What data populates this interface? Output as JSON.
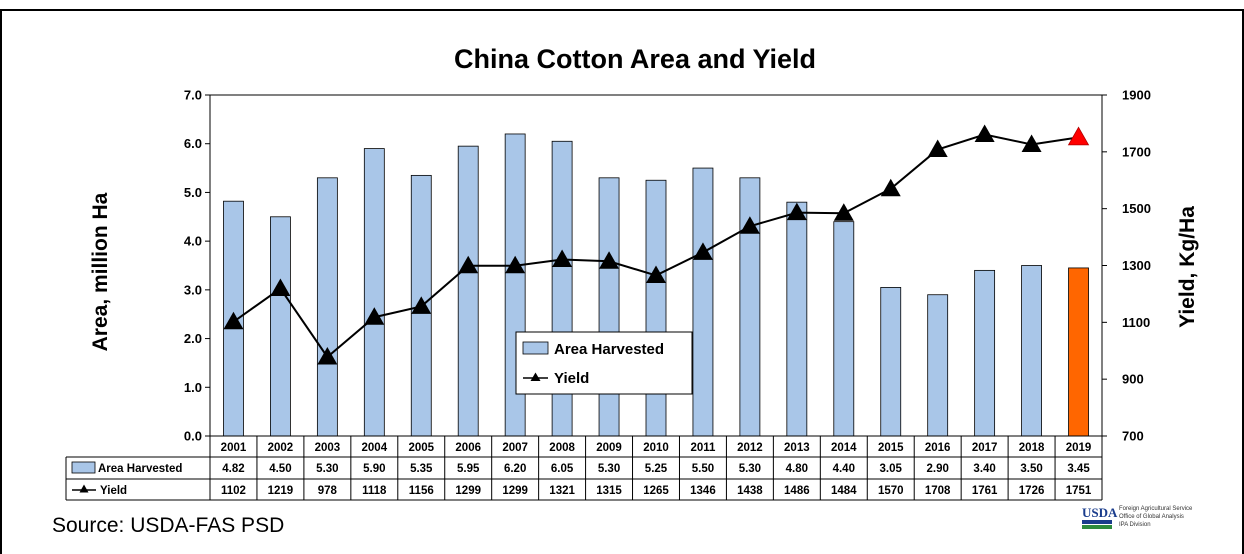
{
  "chart_data": {
    "type": "bar",
    "title": "China Cotton Area and Yield",
    "categories": [
      "2001",
      "2002",
      "2003",
      "2004",
      "2005",
      "2006",
      "2007",
      "2008",
      "2009",
      "2010",
      "2011",
      "2012",
      "2013",
      "2014",
      "2015",
      "2016",
      "2017",
      "2018",
      "2019"
    ],
    "series": [
      {
        "name": "Area Harvested",
        "type": "bar",
        "axis": "left",
        "values": [
          4.82,
          4.5,
          5.3,
          5.9,
          5.35,
          5.95,
          6.2,
          6.05,
          5.3,
          5.25,
          5.5,
          5.3,
          4.8,
          4.4,
          3.05,
          2.9,
          3.4,
          3.5,
          3.45
        ],
        "labels": [
          "4.82",
          "4.50",
          "5.30",
          "5.90",
          "5.35",
          "5.95",
          "6.20",
          "6.05",
          "5.30",
          "5.25",
          "5.50",
          "5.30",
          "4.80",
          "4.40",
          "3.05",
          "2.90",
          "3.40",
          "3.50",
          "3.45"
        ],
        "color": "#a9c6e8",
        "highlight_color": "#ff6600",
        "highlight_category": "2019"
      },
      {
        "name": "Yield",
        "type": "line",
        "axis": "right",
        "values": [
          1102,
          1219,
          978,
          1118,
          1156,
          1299,
          1299,
          1321,
          1315,
          1265,
          1346,
          1438,
          1486,
          1484,
          1570,
          1708,
          1761,
          1726,
          1751
        ],
        "color": "#000000",
        "marker": "triangle",
        "highlight_marker_color": "#ff0000",
        "highlight_category": "2019"
      }
    ],
    "y_left": {
      "label": "Area, million Ha",
      "range": [
        0,
        7
      ],
      "ticks": [
        "0.0",
        "1.0",
        "2.0",
        "3.0",
        "4.0",
        "5.0",
        "6.0",
        "7.0"
      ]
    },
    "y_right": {
      "label": "Yield, Kg/Ha",
      "range": [
        700,
        1900
      ],
      "ticks": [
        "700",
        "900",
        "1100",
        "1300",
        "1500",
        "1700",
        "1900"
      ]
    },
    "grid": false,
    "legend": {
      "placement": "center",
      "items": [
        "Area Harvested",
        "Yield"
      ]
    },
    "data_table": true
  },
  "footer": {
    "source": "Source: USDA-FAS PSD",
    "logo_text": "USDA",
    "agency_lines": [
      "Foreign Agricultural Service",
      "Office of Global Analysis",
      "IPA Division"
    ]
  }
}
